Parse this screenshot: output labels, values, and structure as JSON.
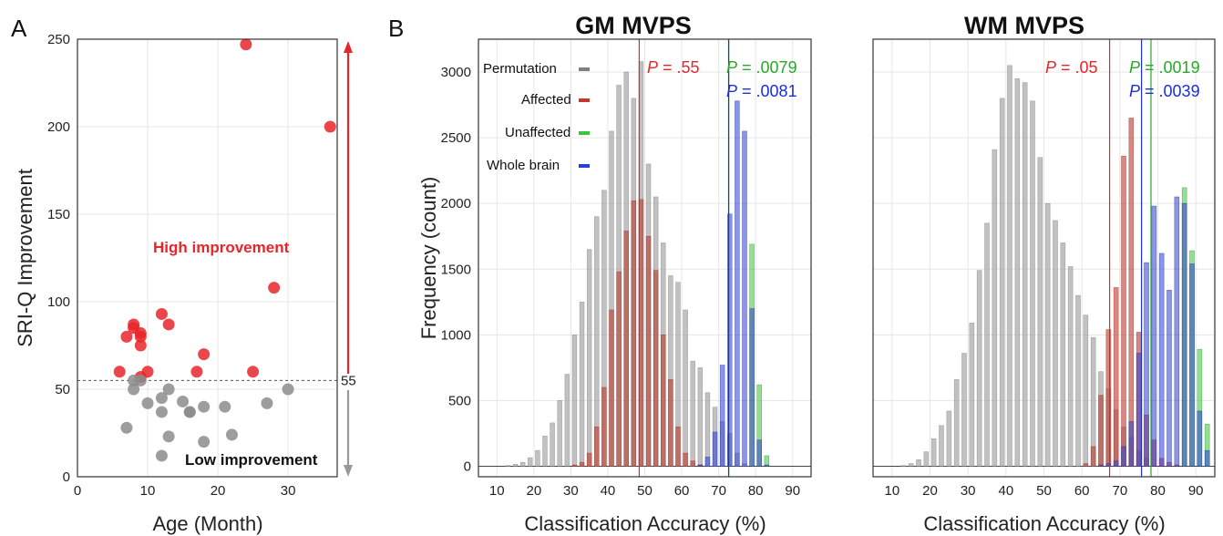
{
  "panel_letters": {
    "a": "A",
    "b": "B"
  },
  "scatter_annotations": {
    "high": "High improvement",
    "low": "Low improvement",
    "threshold_label": "55"
  },
  "legend": [
    "Permutation",
    "Affected",
    "Unaffected",
    "Whole brain"
  ],
  "colors": {
    "high": "#e8262a",
    "low": "#8c8c8c",
    "permutation": "#a6a6a6",
    "affected": "#c0392b",
    "unaffected": "#3cc43c",
    "whole_brain": "#2b3fd6",
    "p_affected": "#e8262a",
    "p_unaffected": "#2aa82a",
    "p_whole": "#1d2fd4"
  },
  "chart_data": [
    {
      "type": "scatter",
      "panel": "A",
      "title": "",
      "xlabel": "Age (Month)",
      "ylabel": "SRI-Q Improvement",
      "xlim": [
        0,
        37
      ],
      "ylim": [
        0,
        250
      ],
      "xticks": [
        0,
        10,
        20,
        30
      ],
      "yticks": [
        0,
        50,
        100,
        150,
        200,
        250
      ],
      "grid": true,
      "threshold": 55,
      "series": [
        {
          "name": "High improvement",
          "points": [
            [
              6,
              60
            ],
            [
              7,
              80
            ],
            [
              8,
              85
            ],
            [
              8,
              87
            ],
            [
              9,
              82
            ],
            [
              9,
              80
            ],
            [
              9,
              75
            ],
            [
              9,
              57
            ],
            [
              10,
              60
            ],
            [
              12,
              93
            ],
            [
              13,
              87
            ],
            [
              17,
              60
            ],
            [
              18,
              70
            ],
            [
              24,
              247
            ],
            [
              25,
              60
            ],
            [
              28,
              108
            ],
            [
              36,
              200
            ]
          ]
        },
        {
          "name": "Low improvement",
          "points": [
            [
              7,
              28
            ],
            [
              8,
              55
            ],
            [
              8,
              50
            ],
            [
              9,
              55
            ],
            [
              10,
              42
            ],
            [
              12,
              45
            ],
            [
              12,
              37
            ],
            [
              12,
              12
            ],
            [
              13,
              50
            ],
            [
              13,
              23
            ],
            [
              15,
              43
            ],
            [
              16,
              37
            ],
            [
              16,
              37
            ],
            [
              18,
              40
            ],
            [
              18,
              20
            ],
            [
              21,
              40
            ],
            [
              22,
              24
            ],
            [
              27,
              42
            ],
            [
              30,
              50
            ]
          ]
        }
      ]
    },
    {
      "type": "bar",
      "panel": "B-GM",
      "title": "GM MVPS",
      "xlabel": "Classification Accuracy (%)",
      "ylabel": "Frequency (count)",
      "xlim": [
        5,
        95
      ],
      "ylim": [
        -80,
        3250
      ],
      "xticks": [
        10,
        20,
        30,
        40,
        50,
        60,
        70,
        80,
        90
      ],
      "yticks": [
        0,
        500,
        1000,
        1500,
        2000,
        2500,
        3000
      ],
      "grid": true,
      "legend_position": "top-left",
      "x": [
        13,
        15,
        17,
        19,
        21,
        23,
        25,
        27,
        29,
        31,
        33,
        35,
        37,
        39,
        41,
        43,
        45,
        47,
        49,
        51,
        53,
        55,
        57,
        59,
        61,
        63,
        65,
        67,
        69,
        71,
        73,
        75,
        77,
        79,
        81,
        83,
        85
      ],
      "series": [
        {
          "name": "Permutation",
          "values": [
            5,
            15,
            30,
            65,
            120,
            230,
            330,
            500,
            700,
            1000,
            1250,
            1650,
            1900,
            2100,
            2550,
            2900,
            3000,
            2800,
            3080,
            2300,
            2050,
            1700,
            1450,
            1400,
            1190,
            800,
            750,
            560,
            450,
            340,
            250,
            100,
            20,
            0,
            0,
            0,
            0
          ]
        },
        {
          "name": "Affected",
          "values": [
            0,
            0,
            0,
            0,
            0,
            0,
            0,
            0,
            0,
            10,
            30,
            100,
            300,
            600,
            1190,
            1480,
            1790,
            2020,
            2030,
            1750,
            1490,
            1000,
            660,
            300,
            100,
            40,
            10,
            0,
            0,
            0,
            0,
            0,
            0,
            0,
            0,
            0,
            0
          ]
        },
        {
          "name": "Unaffected",
          "values": [
            0,
            0,
            0,
            0,
            0,
            0,
            0,
            0,
            0,
            0,
            0,
            0,
            0,
            0,
            0,
            0,
            0,
            0,
            0,
            0,
            0,
            0,
            0,
            0,
            0,
            0,
            0,
            0,
            0,
            0,
            0,
            0,
            0,
            1690,
            620,
            80,
            0
          ]
        },
        {
          "name": "Whole brain",
          "values": [
            0,
            0,
            0,
            0,
            0,
            0,
            0,
            0,
            0,
            0,
            0,
            0,
            0,
            0,
            0,
            0,
            0,
            0,
            0,
            0,
            0,
            0,
            0,
            0,
            0,
            0,
            10,
            70,
            260,
            770,
            1920,
            2780,
            2550,
            1200,
            200,
            10,
            0
          ]
        }
      ],
      "p_lines": [
        {
          "label": "P",
          "value": ".55",
          "x": 48.5,
          "color_key": "p_affected"
        },
        {
          "label": "P",
          "value": ".0079",
          "x": 72.7,
          "color_key": "p_unaffected"
        },
        {
          "label": "P",
          "value": ".0081",
          "x": 72.7,
          "color_key": "p_whole"
        }
      ]
    },
    {
      "type": "bar",
      "panel": "B-WM",
      "title": "WM MVPS",
      "xlabel": "Classification Accuracy (%)",
      "ylabel": "",
      "xlim": [
        5,
        95
      ],
      "ylim": [
        -80,
        3250
      ],
      "xticks": [
        10,
        20,
        30,
        40,
        50,
        60,
        70,
        80,
        90
      ],
      "yticks": [
        0,
        500,
        1000,
        1500,
        2000,
        2500,
        3000
      ],
      "grid": true,
      "x": [
        13,
        15,
        17,
        19,
        21,
        23,
        25,
        27,
        29,
        31,
        33,
        35,
        37,
        39,
        41,
        43,
        45,
        47,
        49,
        51,
        53,
        55,
        57,
        59,
        61,
        63,
        65,
        67,
        69,
        71,
        73,
        75,
        77,
        79,
        81,
        83,
        85,
        87,
        89,
        91,
        93
      ],
      "series": [
        {
          "name": "Permutation",
          "values": [
            5,
            20,
            50,
            110,
            210,
            310,
            420,
            660,
            860,
            1090,
            1490,
            1850,
            2410,
            2800,
            3050,
            2950,
            2920,
            2780,
            2350,
            2000,
            1870,
            1700,
            1520,
            1300,
            1150,
            980,
            720,
            590,
            430,
            300,
            220,
            120,
            60,
            0,
            0,
            0,
            0,
            0,
            0,
            0,
            0
          ]
        },
        {
          "name": "Affected",
          "values": [
            0,
            0,
            0,
            0,
            0,
            0,
            0,
            0,
            0,
            0,
            0,
            0,
            0,
            0,
            0,
            0,
            0,
            0,
            0,
            0,
            0,
            0,
            0,
            0,
            20,
            150,
            540,
            1040,
            1360,
            2360,
            2650,
            1020,
            390,
            200,
            60,
            30,
            10,
            0,
            0,
            0,
            0
          ]
        },
        {
          "name": "Unaffected",
          "values": [
            0,
            0,
            0,
            0,
            0,
            0,
            0,
            0,
            0,
            0,
            0,
            0,
            0,
            0,
            0,
            0,
            0,
            0,
            0,
            0,
            0,
            0,
            0,
            0,
            0,
            0,
            0,
            0,
            0,
            0,
            0,
            0,
            0,
            0,
            0,
            0,
            0,
            2120,
            1640,
            890,
            320
          ]
        },
        {
          "name": "Whole brain",
          "values": [
            0,
            0,
            0,
            0,
            0,
            0,
            0,
            0,
            0,
            0,
            0,
            0,
            0,
            0,
            0,
            0,
            0,
            0,
            0,
            0,
            0,
            0,
            0,
            0,
            0,
            0,
            10,
            20,
            40,
            150,
            340,
            860,
            1550,
            1980,
            1620,
            1340,
            2050,
            2000,
            1540,
            420,
            120
          ]
        }
      ],
      "p_lines": [
        {
          "label": "P",
          "value": ".05",
          "x": 67.3,
          "color_key": "p_affected"
        },
        {
          "label": "P",
          "value": ".0019",
          "x": 78.2,
          "color_key": "p_unaffected"
        },
        {
          "label": "P",
          "value": ".0039",
          "x": 75.7,
          "color_key": "p_whole"
        }
      ]
    }
  ]
}
